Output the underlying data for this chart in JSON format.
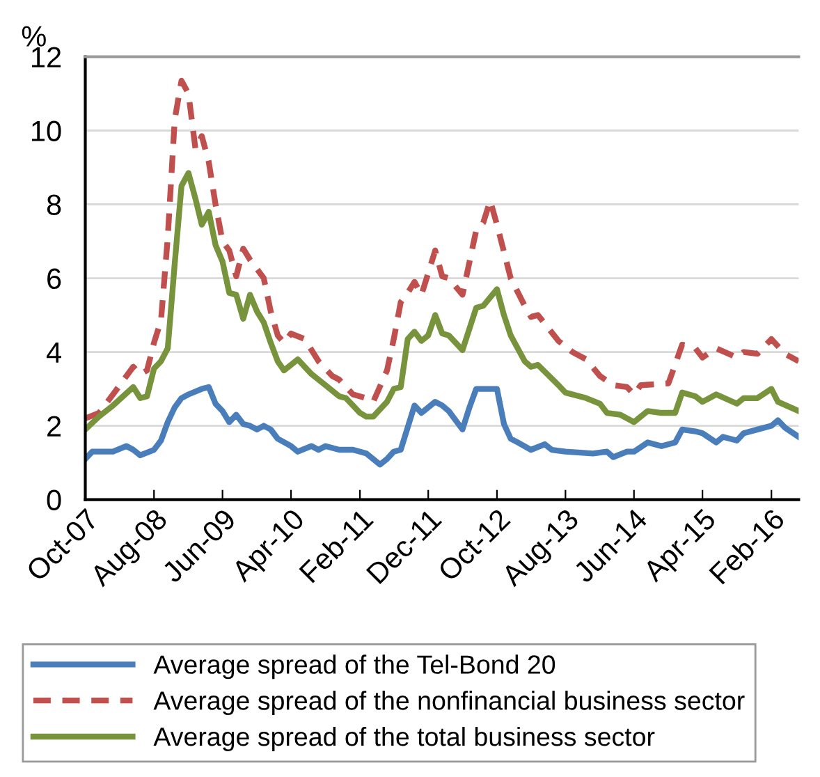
{
  "chart_data": {
    "type": "line",
    "ylabel": "%",
    "ylim": [
      0,
      12
    ],
    "yticks": [
      0,
      2,
      4,
      6,
      8,
      10,
      12
    ],
    "xlim": [
      "2007-10",
      "2016-06"
    ],
    "xticks": [
      {
        "value": "2007-10",
        "label": "Oct-07"
      },
      {
        "value": "2008-08",
        "label": "Aug-08"
      },
      {
        "value": "2009-06",
        "label": "Jun-09"
      },
      {
        "value": "2010-04",
        "label": "Apr-10"
      },
      {
        "value": "2011-02",
        "label": "Feb-11"
      },
      {
        "value": "2011-12",
        "label": "Dec-11"
      },
      {
        "value": "2012-10",
        "label": "Oct-12"
      },
      {
        "value": "2013-08",
        "label": "Aug-13"
      },
      {
        "value": "2014-06",
        "label": "Jun-14"
      },
      {
        "value": "2015-04",
        "label": "Apr-15"
      },
      {
        "value": "2016-02",
        "label": "Feb-16"
      }
    ],
    "grid": "y",
    "legend": "bottom",
    "marker": "none",
    "series": [
      {
        "name": "Average spread of the Tel-Bond 20",
        "color": "#4a7ebb",
        "line_style": "solid",
        "x": [
          "2007-10",
          "2007-11",
          "2008-02",
          "2008-04",
          "2008-05",
          "2008-06",
          "2008-08",
          "2008-09",
          "2008-10",
          "2008-11",
          "2008-12",
          "2009-01",
          "2009-03",
          "2009-04",
          "2009-05",
          "2009-06",
          "2009-07",
          "2009-08",
          "2009-09",
          "2009-10",
          "2009-11",
          "2009-12",
          "2010-01",
          "2010-02",
          "2010-04",
          "2010-05",
          "2010-07",
          "2010-08",
          "2010-09",
          "2010-11",
          "2011-01",
          "2011-03",
          "2011-05",
          "2011-06",
          "2011-07",
          "2011-08",
          "2011-10",
          "2011-11",
          "2012-01",
          "2012-02",
          "2012-03",
          "2012-05",
          "2012-06",
          "2012-07",
          "2012-10",
          "2012-11",
          "2012-12",
          "2013-01",
          "2013-03",
          "2013-05",
          "2013-06",
          "2013-08",
          "2013-12",
          "2014-02",
          "2014-03",
          "2014-05",
          "2014-06",
          "2014-08",
          "2014-10",
          "2014-12",
          "2015-01",
          "2015-03",
          "2015-04",
          "2015-06",
          "2015-07",
          "2015-09",
          "2015-10",
          "2015-12",
          "2016-02",
          "2016-03",
          "2016-04",
          "2016-06"
        ],
        "values": [
          1.1,
          1.3,
          1.3,
          1.45,
          1.35,
          1.2,
          1.35,
          1.6,
          2.1,
          2.5,
          2.75,
          2.85,
          3.0,
          3.05,
          2.6,
          2.4,
          2.1,
          2.3,
          2.05,
          2.0,
          1.9,
          2.0,
          1.9,
          1.65,
          1.45,
          1.3,
          1.45,
          1.35,
          1.45,
          1.35,
          1.35,
          1.25,
          0.95,
          1.1,
          1.3,
          1.35,
          2.55,
          2.35,
          2.65,
          2.55,
          2.4,
          1.9,
          2.5,
          3.0,
          3.0,
          2.05,
          1.65,
          1.55,
          1.35,
          1.5,
          1.35,
          1.3,
          1.25,
          1.3,
          1.15,
          1.3,
          1.3,
          1.55,
          1.45,
          1.55,
          1.9,
          1.85,
          1.8,
          1.55,
          1.7,
          1.6,
          1.8,
          1.9,
          2.0,
          2.15,
          1.95,
          1.7
        ]
      },
      {
        "name": "Average spread of the nonfinancial business sector",
        "color": "#c0504d",
        "line_style": "dashed",
        "x": [
          "2007-10",
          "2007-12",
          "2008-02",
          "2008-05",
          "2008-06",
          "2008-07",
          "2008-08",
          "2008-09",
          "2008-10",
          "2008-11",
          "2008-12",
          "2009-01",
          "2009-02",
          "2009-03",
          "2009-04",
          "2009-05",
          "2009-06",
          "2009-07",
          "2009-08",
          "2009-09",
          "2009-10",
          "2009-12",
          "2010-01",
          "2010-02",
          "2010-03",
          "2010-04",
          "2010-06",
          "2010-08",
          "2010-10",
          "2010-11",
          "2011-01",
          "2011-03",
          "2011-04",
          "2011-06",
          "2011-07",
          "2011-08",
          "2011-09",
          "2011-10",
          "2011-11",
          "2012-01",
          "2012-02",
          "2012-03",
          "2012-05",
          "2012-07",
          "2012-08",
          "2012-09",
          "2012-10",
          "2012-12",
          "2013-02",
          "2013-03",
          "2013-04",
          "2013-07",
          "2013-09",
          "2013-11",
          "2014-01",
          "2014-03",
          "2014-05",
          "2014-06",
          "2014-07",
          "2014-11",
          "2015-01",
          "2015-03",
          "2015-04",
          "2015-06",
          "2015-09",
          "2015-10",
          "2015-12",
          "2016-02",
          "2016-04",
          "2016-06"
        ],
        "values": [
          2.2,
          2.35,
          2.85,
          3.6,
          3.4,
          3.5,
          4.25,
          4.85,
          7.1,
          10.3,
          11.35,
          11.0,
          9.5,
          9.85,
          9.15,
          8.0,
          7.0,
          6.75,
          6.05,
          6.8,
          6.5,
          6.0,
          5.1,
          4.45,
          4.25,
          4.5,
          4.35,
          3.75,
          3.35,
          3.25,
          2.85,
          2.75,
          2.65,
          3.5,
          4.35,
          5.35,
          5.6,
          5.9,
          5.55,
          6.75,
          6.05,
          6.0,
          5.55,
          7.3,
          7.5,
          8.1,
          7.45,
          6.0,
          5.25,
          4.95,
          5.0,
          4.3,
          4.0,
          3.8,
          3.35,
          3.1,
          3.05,
          2.85,
          3.1,
          3.15,
          4.2,
          4.1,
          3.85,
          4.1,
          3.85,
          4.0,
          3.95,
          4.35,
          3.95,
          3.75
        ]
      },
      {
        "name": "Average spread of the total business sector",
        "color": "#77933c",
        "line_style": "solid",
        "x": [
          "2007-10",
          "2007-12",
          "2008-02",
          "2008-05",
          "2008-06",
          "2008-07",
          "2008-08",
          "2008-09",
          "2008-10",
          "2008-11",
          "2008-12",
          "2009-01",
          "2009-02",
          "2009-03",
          "2009-04",
          "2009-05",
          "2009-06",
          "2009-07",
          "2009-08",
          "2009-09",
          "2009-10",
          "2009-11",
          "2009-12",
          "2010-01",
          "2010-02",
          "2010-03",
          "2010-05",
          "2010-07",
          "2010-09",
          "2010-11",
          "2010-12",
          "2011-02",
          "2011-03",
          "2011-04",
          "2011-06",
          "2011-07",
          "2011-08",
          "2011-09",
          "2011-10",
          "2011-11",
          "2011-12",
          "2012-01",
          "2012-02",
          "2012-03",
          "2012-05",
          "2012-07",
          "2012-08",
          "2012-10",
          "2012-11",
          "2012-12",
          "2013-02",
          "2013-03",
          "2013-04",
          "2013-07",
          "2013-08",
          "2013-11",
          "2014-01",
          "2014-02",
          "2014-04",
          "2014-06",
          "2014-08",
          "2014-10",
          "2014-12",
          "2015-01",
          "2015-03",
          "2015-04",
          "2015-06",
          "2015-09",
          "2015-10",
          "2015-12",
          "2016-02",
          "2016-03",
          "2016-06"
        ],
        "values": [
          1.9,
          2.25,
          2.55,
          3.05,
          2.75,
          2.8,
          3.55,
          3.75,
          4.1,
          6.4,
          8.5,
          8.85,
          8.15,
          7.45,
          7.8,
          6.9,
          6.45,
          5.6,
          5.55,
          4.9,
          5.55,
          5.1,
          4.8,
          4.25,
          3.75,
          3.5,
          3.8,
          3.4,
          3.1,
          2.8,
          2.75,
          2.35,
          2.25,
          2.25,
          2.65,
          3.0,
          3.05,
          4.35,
          4.55,
          4.3,
          4.45,
          5.0,
          4.5,
          4.45,
          4.05,
          5.2,
          5.25,
          5.7,
          5.0,
          4.45,
          3.75,
          3.6,
          3.65,
          3.1,
          2.9,
          2.75,
          2.6,
          2.35,
          2.3,
          2.1,
          2.4,
          2.35,
          2.35,
          2.9,
          2.8,
          2.65,
          2.85,
          2.6,
          2.75,
          2.75,
          3.0,
          2.65,
          2.4
        ]
      }
    ]
  }
}
